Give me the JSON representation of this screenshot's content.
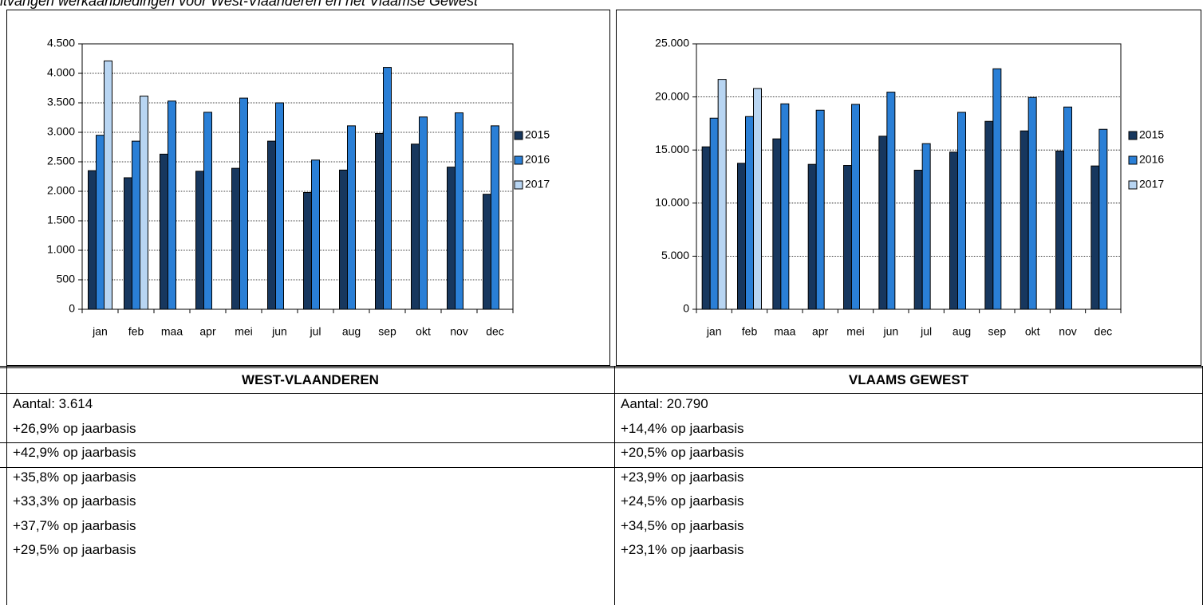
{
  "header": {
    "title": "itvangen werkaanbiedingen voor West-Vlaanderen en het Vlaamse Gewest"
  },
  "chart_data": [
    {
      "type": "bar",
      "categories": [
        "jan",
        "feb",
        "maa",
        "apr",
        "mei",
        "jun",
        "jul",
        "aug",
        "sep",
        "okt",
        "nov",
        "dec"
      ],
      "series": [
        {
          "name": "2015",
          "color": "#17375e",
          "values": [
            2350,
            2230,
            2630,
            2340,
            2390,
            2850,
            1980,
            2360,
            2980,
            2800,
            2410,
            1950
          ]
        },
        {
          "name": "2016",
          "color": "#2a7fd6",
          "values": [
            2950,
            2850,
            3530,
            3340,
            3580,
            3500,
            2530,
            3110,
            4100,
            3260,
            3330,
            3110
          ]
        },
        {
          "name": "2017",
          "color": "#b8d5f2",
          "values": [
            4210,
            3614,
            null,
            null,
            null,
            null,
            null,
            null,
            null,
            null,
            null,
            null
          ]
        }
      ],
      "ylim": [
        0,
        4500
      ],
      "yticks": [
        0,
        500,
        {
          "value": 1000,
          "label": "1.000"
        },
        {
          "value": 1500,
          "label": "1.500"
        },
        {
          "value": 2000,
          "label": "2.000"
        },
        {
          "value": 2500,
          "label": "2.500"
        },
        {
          "value": 3000,
          "label": "3.000"
        },
        {
          "value": 3500,
          "label": "3.500"
        },
        {
          "value": 4000,
          "label": "4.000"
        },
        {
          "value": 4500,
          "label": "4.500"
        }
      ],
      "grid": true,
      "legend": "right"
    },
    {
      "type": "bar",
      "categories": [
        "jan",
        "feb",
        "maa",
        "apr",
        "mei",
        "jun",
        "jul",
        "aug",
        "sep",
        "okt",
        "nov",
        "dec"
      ],
      "series": [
        {
          "name": "2015",
          "color": "#17375e",
          "values": [
            15300,
            13750,
            16050,
            13650,
            13550,
            16300,
            13100,
            14800,
            17700,
            16800,
            14900,
            13500
          ]
        },
        {
          "name": "2016",
          "color": "#2a7fd6",
          "values": [
            18000,
            18150,
            19350,
            18750,
            19300,
            20450,
            15600,
            18550,
            22650,
            19950,
            19050,
            16950
          ]
        },
        {
          "name": "2017",
          "color": "#b8d5f2",
          "values": [
            21650,
            20790,
            null,
            null,
            null,
            null,
            null,
            null,
            null,
            null,
            null,
            null
          ]
        }
      ],
      "ylim": [
        0,
        25000
      ],
      "yticks": [
        0,
        {
          "value": 5000,
          "label": "5.000"
        },
        {
          "value": 10000,
          "label": "10.000"
        },
        {
          "value": 15000,
          "label": "15.000"
        },
        {
          "value": 20000,
          "label": "20.000"
        },
        {
          "value": 25000,
          "label": "25.000"
        }
      ],
      "grid": true,
      "legend": "right"
    }
  ],
  "table": {
    "header": [
      "WEST-VLAANDEREN",
      "VLAAMS GEWEST"
    ],
    "rows": [
      [
        [
          "Aantal: 3.614",
          "+26,9% op jaarbasis"
        ],
        [
          "Aantal: 20.790",
          "+14,4% op jaarbasis"
        ]
      ],
      [
        [
          "+42,9% op jaarbasis"
        ],
        [
          "+20,5% op jaarbasis"
        ]
      ],
      [
        [
          "+35,8% op jaarbasis",
          "+33,3% op jaarbasis",
          "+37,7% op jaarbasis",
          "+29,5% op jaarbasis"
        ],
        [
          "+23,9% op jaarbasis",
          "+24,5% op jaarbasis",
          "+34,5% op jaarbasis",
          "+23,1% op jaarbasis"
        ]
      ]
    ]
  }
}
